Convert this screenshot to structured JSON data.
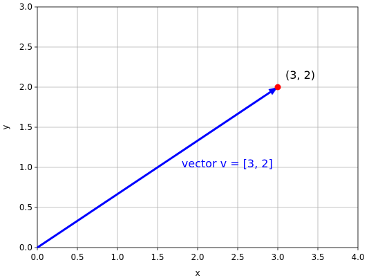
{
  "chart_data": {
    "type": "vector",
    "x_label": "x",
    "y_label": "y",
    "xlim": [
      0,
      4
    ],
    "ylim": [
      0,
      3
    ],
    "xticks": [
      {
        "value": 0,
        "label": "0.0"
      },
      {
        "value": 0.5,
        "label": "0.5"
      },
      {
        "value": 1,
        "label": "1.0"
      },
      {
        "value": 1.5,
        "label": "1.5"
      },
      {
        "value": 2,
        "label": "2.0"
      },
      {
        "value": 2.5,
        "label": "2.5"
      },
      {
        "value": 3,
        "label": "3.0"
      },
      {
        "value": 3.5,
        "label": "3.5"
      },
      {
        "value": 4,
        "label": "4.0"
      }
    ],
    "yticks": [
      {
        "value": 0,
        "label": "0.0"
      },
      {
        "value": 0.5,
        "label": "0.5"
      },
      {
        "value": 1,
        "label": "1.0"
      },
      {
        "value": 1.5,
        "label": "1.5"
      },
      {
        "value": 2,
        "label": "2.0"
      },
      {
        "value": 2.5,
        "label": "2.5"
      },
      {
        "value": 3,
        "label": "3.0"
      }
    ],
    "grid": true,
    "vector": {
      "x": [
        0,
        3
      ],
      "y": [
        0,
        2
      ],
      "color": "#0000ff",
      "label": "vector v = [3, 2]"
    },
    "point": {
      "x": 3,
      "y": 2,
      "color": "#ff0000",
      "label": "(3, 2)"
    }
  }
}
